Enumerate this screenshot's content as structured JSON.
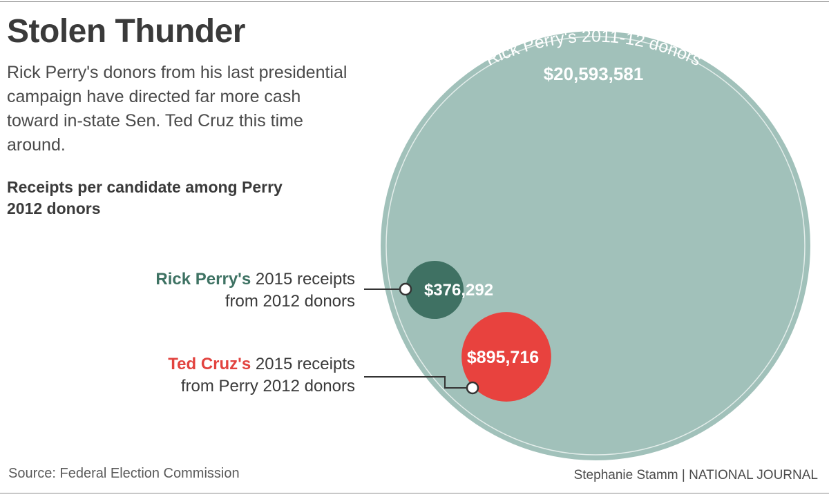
{
  "title": "Stolen Thunder",
  "subtitle": "Rick Perry's donors from his last presidential campaign have directed far more cash toward in-state Sen. Ted Cruz this time around.",
  "chart_heading": "Receipts per candidate among Perry 2012 donors",
  "chart_data": {
    "type": "bubble",
    "title": "Receipts per candidate among Perry 2012 donors",
    "series": [
      {
        "name": "Rick Perry's 2011-12 donors",
        "value": 20593581,
        "value_label": "$20,593,581",
        "color": "#a1c1ba"
      },
      {
        "name": "Rick Perry's 2015 receipts from 2012 donors",
        "value": 376292,
        "value_label": "$376,292",
        "color": "#3f7163"
      },
      {
        "name": "Ted Cruz's 2015 receipts from Perry 2012 donors",
        "value": 895716,
        "value_label": "$895,716",
        "color": "#e8423e"
      }
    ]
  },
  "labels": {
    "big_circle": "Rick Perry's 2011-12 donors",
    "perry_name": "Rick Perry's",
    "perry_rest_1": " 2015 receipts",
    "perry_rest_2": "from 2012 donors",
    "cruz_name": "Ted Cruz's",
    "cruz_rest_1": " 2015 receipts",
    "cruz_rest_2": "from Perry 2012 donors"
  },
  "footer": {
    "source": "Source: Federal Election Commission",
    "credit": "Stephanie Stamm | NATIONAL JOURNAL"
  }
}
